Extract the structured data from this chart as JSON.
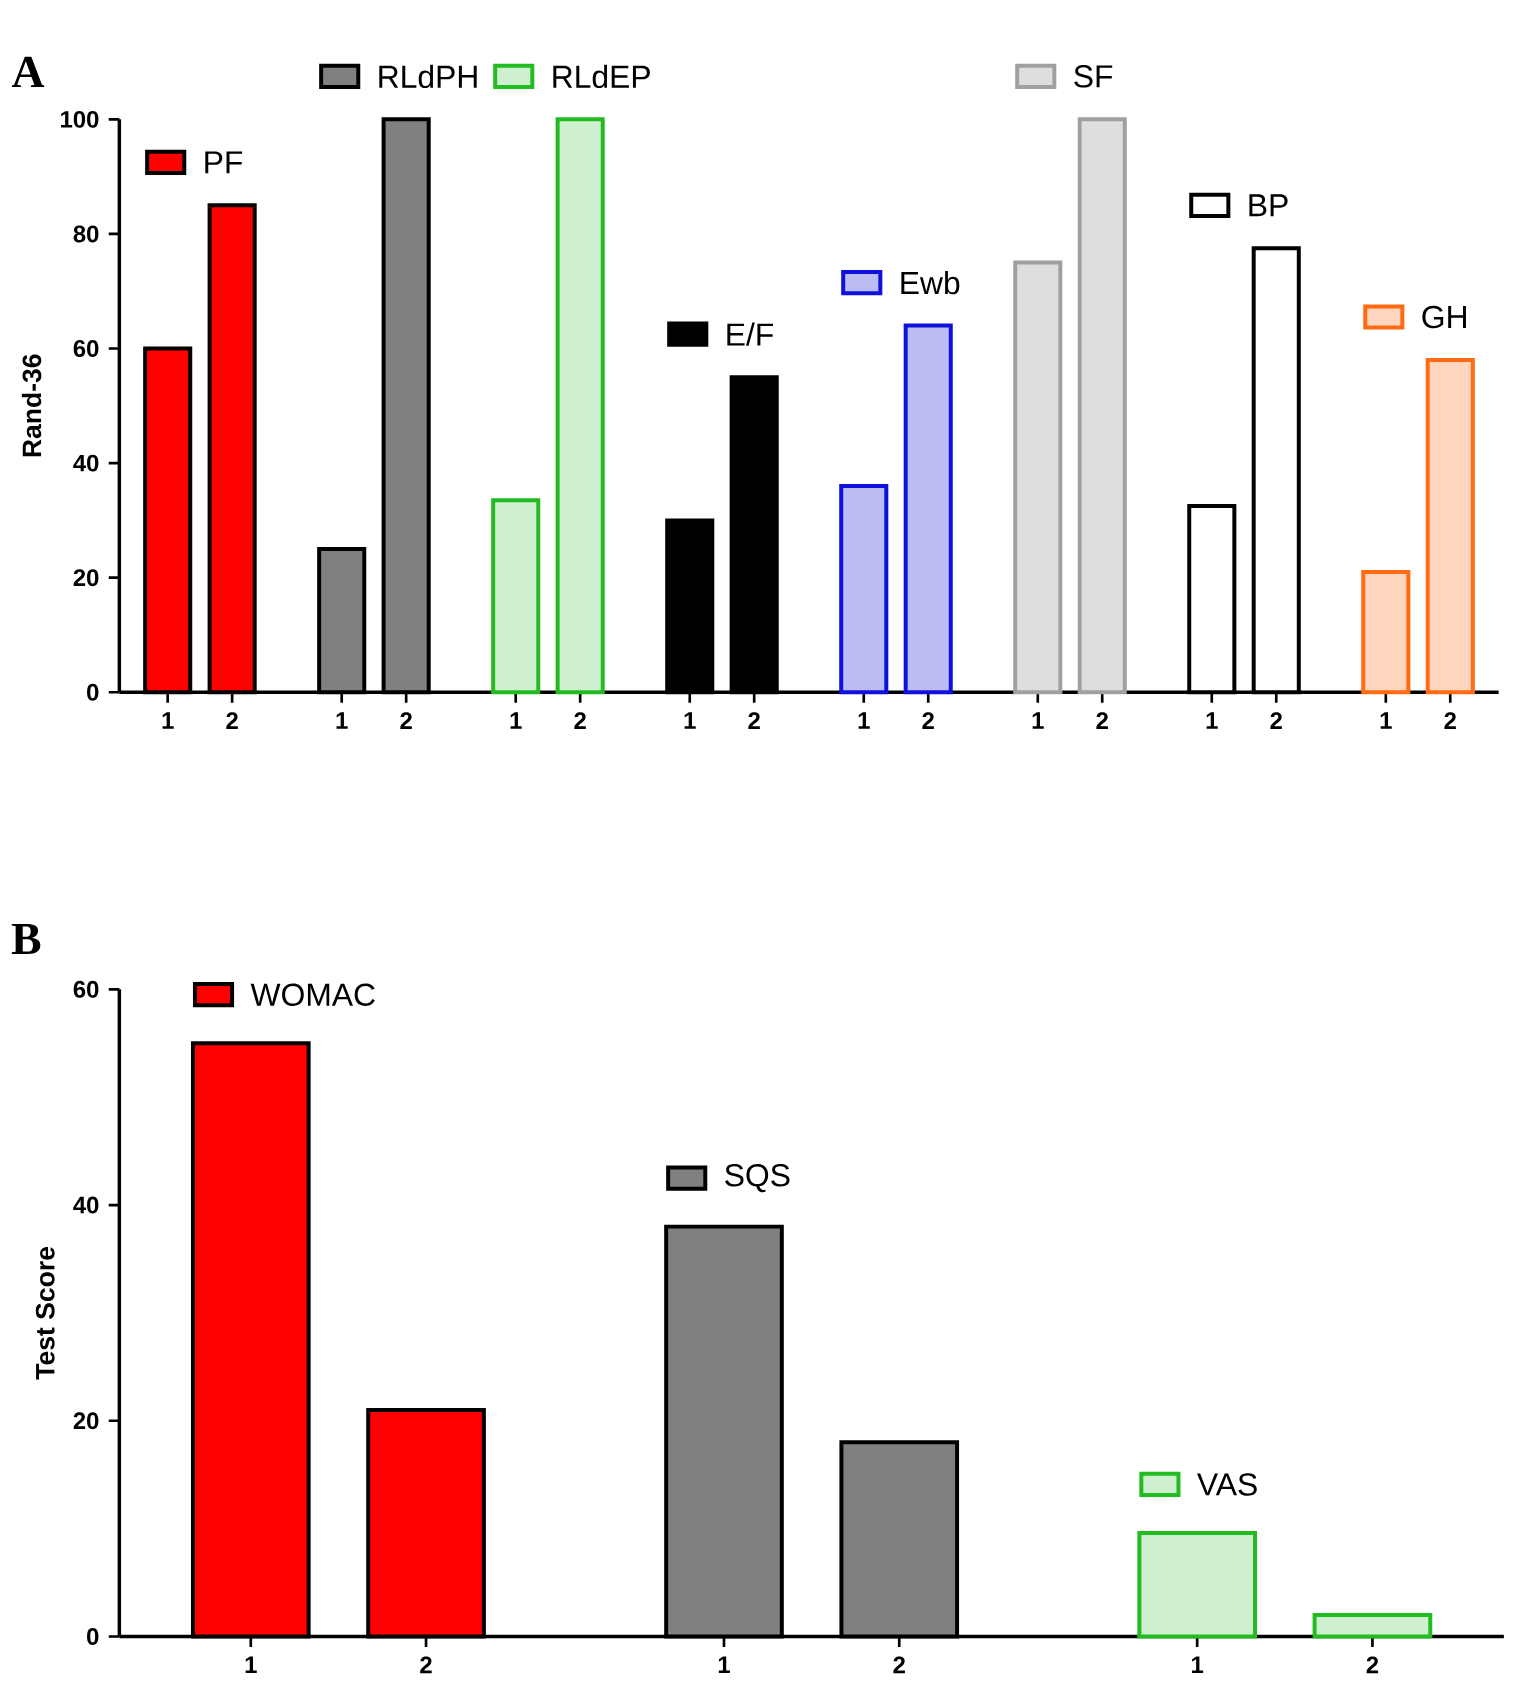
{
  "chart_data": [
    {
      "type": "bar",
      "title": "A",
      "legend": "top",
      "ylabel": "Rand-36",
      "categories": [
        "1",
        "2",
        "1",
        "2",
        "1",
        "2",
        "1",
        "2",
        "1",
        "2",
        "1",
        "2",
        "1",
        "2",
        "1",
        "2"
      ],
      "ylim": [
        0,
        100
      ],
      "yticks": [
        0,
        20,
        40,
        60,
        80,
        100
      ],
      "series": [
        {
          "name": "PF",
          "color": "#ff0000",
          "values": [
            60,
            85,
            null,
            null,
            null,
            null,
            null,
            null,
            null,
            null,
            null,
            null,
            null,
            null,
            null,
            null
          ]
        },
        {
          "name": "RLdPH",
          "color": "#000000",
          "values": [
            null,
            null,
            25,
            100,
            null,
            null,
            null,
            null,
            null,
            null,
            null,
            null,
            null,
            null,
            null,
            null
          ]
        },
        {
          "name": "RLdEP",
          "color": "#22bb22",
          "values": [
            null,
            null,
            null,
            null,
            33.5,
            100,
            null,
            null,
            null,
            null,
            null,
            null,
            null,
            null,
            null,
            null
          ]
        },
        {
          "name": "E/F",
          "color": "#000000",
          "values": [
            null,
            null,
            null,
            null,
            null,
            null,
            30,
            55,
            null,
            null,
            null,
            null,
            null,
            null,
            null,
            null
          ]
        },
        {
          "name": "Ewb",
          "color": "#1010dd",
          "values": [
            null,
            null,
            null,
            null,
            null,
            null,
            null,
            null,
            36,
            64,
            null,
            null,
            null,
            null,
            null,
            null
          ]
        },
        {
          "name": "SF",
          "color": "#a0a0a0",
          "values": [
            null,
            null,
            null,
            null,
            null,
            null,
            null,
            null,
            null,
            null,
            75,
            100,
            null,
            null,
            null,
            null
          ]
        },
        {
          "name": "BP",
          "color": "#000000",
          "values": [
            null,
            null,
            null,
            null,
            null,
            null,
            null,
            null,
            null,
            null,
            null,
            null,
            32.5,
            77.5,
            null,
            null
          ]
        },
        {
          "name": "GH",
          "color": "#ff6a13",
          "values": [
            null,
            null,
            null,
            null,
            null,
            null,
            null,
            null,
            null,
            null,
            null,
            null,
            null,
            null,
            21,
            58
          ]
        }
      ]
    },
    {
      "type": "bar",
      "title": "B",
      "legend": "top",
      "ylabel": "Test Score",
      "categories": [
        "1",
        "2",
        "1",
        "2",
        "1",
        "2"
      ],
      "ylim": [
        0,
        60
      ],
      "yticks": [
        0,
        20,
        40,
        60
      ],
      "series": [
        {
          "name": "WOMAC",
          "color": "#ff0000",
          "values": [
            55,
            21,
            null,
            null,
            null,
            null
          ]
        },
        {
          "name": "SQS",
          "color": "#000000",
          "values": [
            null,
            null,
            38,
            18,
            null,
            null
          ]
        },
        {
          "name": "VAS",
          "color": "#22bb22",
          "values": [
            null,
            null,
            null,
            null,
            9.6,
            2
          ]
        }
      ]
    }
  ]
}
